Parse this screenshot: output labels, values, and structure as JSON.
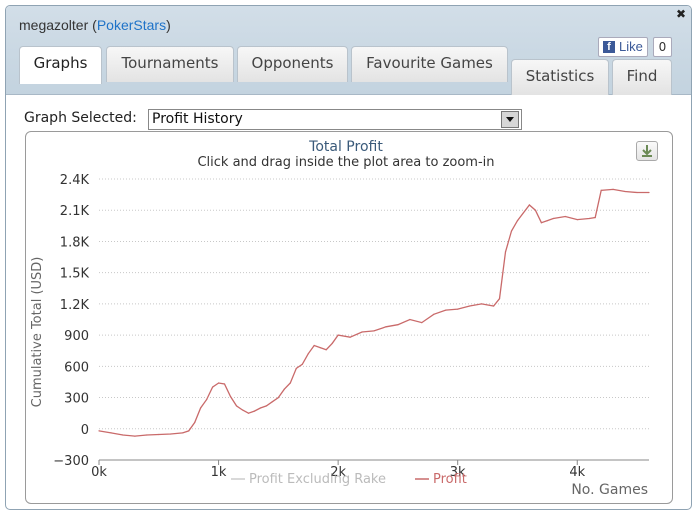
{
  "header": {
    "username": "megazolter",
    "site": "PokerStars",
    "fb_like_label": "Like",
    "fb_like_count": "0"
  },
  "tabs": [
    {
      "label": "Graphs",
      "active": true
    },
    {
      "label": "Tournaments"
    },
    {
      "label": "Opponents"
    },
    {
      "label": "Favourite Games"
    },
    {
      "label": "Statistics"
    },
    {
      "label": "Find"
    }
  ],
  "graph_selector": {
    "label": "Graph Selected:",
    "value": "Profit History"
  },
  "chart_data": {
    "type": "line",
    "title": "Total Profit",
    "subtitle": "Click and drag inside the plot area to zoom-in",
    "xlabel": "No. Games",
    "ylabel": "Cumulative Total (USD)",
    "xlim": [
      0,
      4600
    ],
    "ylim": [
      -300,
      2400
    ],
    "x_ticks": [
      "0k",
      "1k",
      "2k",
      "3k",
      "4k"
    ],
    "y_ticks": [
      "2.4K",
      "2.1K",
      "1.8K",
      "1.5K",
      "1.2K",
      "900",
      "600",
      "300",
      "0",
      "−300"
    ],
    "legend": "bottom-center",
    "grid": true,
    "series": [
      {
        "name": "Profit Excluding Rake",
        "color": "#cccccc",
        "hidden": true,
        "x": [],
        "y": []
      },
      {
        "name": "Profit",
        "color": "#c96a6a",
        "x": [
          0,
          100,
          200,
          300,
          400,
          500,
          600,
          700,
          750,
          800,
          850,
          900,
          950,
          1000,
          1050,
          1100,
          1150,
          1200,
          1250,
          1300,
          1350,
          1400,
          1450,
          1500,
          1550,
          1600,
          1650,
          1700,
          1750,
          1800,
          1850,
          1900,
          1950,
          2000,
          2100,
          2200,
          2300,
          2400,
          2500,
          2600,
          2700,
          2800,
          2900,
          3000,
          3100,
          3200,
          3300,
          3350,
          3400,
          3450,
          3500,
          3600,
          3650,
          3700,
          3750,
          3800,
          3900,
          4000,
          4100,
          4150,
          4200,
          4300,
          4400,
          4500,
          4600
        ],
        "y": [
          -20,
          -40,
          -60,
          -70,
          -60,
          -55,
          -50,
          -40,
          -20,
          60,
          200,
          280,
          400,
          440,
          430,
          310,
          220,
          180,
          150,
          170,
          200,
          220,
          260,
          300,
          380,
          440,
          580,
          620,
          720,
          800,
          780,
          760,
          820,
          900,
          880,
          930,
          940,
          980,
          1000,
          1050,
          1020,
          1100,
          1140,
          1150,
          1180,
          1200,
          1180,
          1250,
          1700,
          1900,
          2000,
          2150,
          2100,
          1980,
          2000,
          2020,
          2040,
          2010,
          2020,
          2030,
          2290,
          2300,
          2280,
          2270,
          2270
        ]
      }
    ]
  }
}
